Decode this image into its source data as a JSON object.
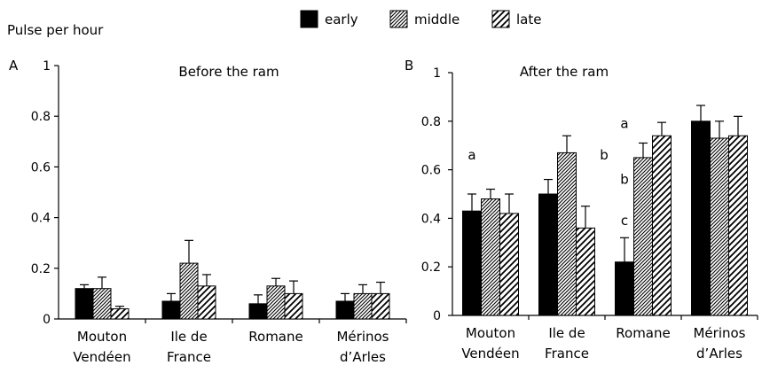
{
  "y_axis_label": "Pulse per hour",
  "legend": [
    {
      "label": "early",
      "pattern": "solid"
    },
    {
      "label": "middle",
      "pattern": "dense-hatch"
    },
    {
      "label": "late",
      "pattern": "sparse-hatch"
    }
  ],
  "colors": {
    "bar": "#000000",
    "background": "#ffffff"
  },
  "chart_data": [
    {
      "type": "bar",
      "panel": "A",
      "title": "Before the ram",
      "categories": [
        [
          "Mouton",
          "Vendéen"
        ],
        [
          "Ile de",
          "France"
        ],
        [
          "Romane",
          ""
        ],
        [
          "Mérinos",
          "d’Arles"
        ]
      ],
      "ylim": [
        0,
        1
      ],
      "yticks": [
        "0",
        "0.2",
        "0.4",
        "0.6",
        "0.8",
        "1"
      ],
      "series": [
        {
          "name": "early",
          "values": [
            0.12,
            0.07,
            0.06,
            0.07
          ],
          "errors": [
            0.015,
            0.03,
            0.035,
            0.03
          ]
        },
        {
          "name": "middle",
          "values": [
            0.12,
            0.22,
            0.13,
            0.1
          ],
          "errors": [
            0.045,
            0.09,
            0.03,
            0.035
          ]
        },
        {
          "name": "late",
          "values": [
            0.04,
            0.13,
            0.1,
            0.1
          ],
          "errors": [
            0.01,
            0.045,
            0.05,
            0.045
          ]
        }
      ],
      "annotations": []
    },
    {
      "type": "bar",
      "panel": "B",
      "title": "After the ram",
      "categories": [
        [
          "Mouton",
          "Vendéen"
        ],
        [
          "Ile de",
          "France"
        ],
        [
          "Romane",
          ""
        ],
        [
          "Mérinos",
          "d’Arles"
        ]
      ],
      "ylim": [
        0,
        1
      ],
      "yticks": [
        "0",
        "0.2",
        "0.4",
        "0.6",
        "0.8",
        "1"
      ],
      "series": [
        {
          "name": "early",
          "values": [
            0.43,
            0.5,
            0.22,
            0.8
          ],
          "errors": [
            0.07,
            0.06,
            0.1,
            0.065
          ]
        },
        {
          "name": "middle",
          "values": [
            0.48,
            0.67,
            0.65,
            0.73
          ],
          "errors": [
            0.04,
            0.07,
            0.06,
            0.07
          ]
        },
        {
          "name": "late",
          "values": [
            0.42,
            0.36,
            0.74,
            0.74
          ],
          "errors": [
            0.08,
            0.09,
            0.055,
            0.08
          ]
        }
      ],
      "annotations": [
        {
          "text": "a",
          "category": 0,
          "series": 0,
          "y": 0.66
        },
        {
          "text": "b",
          "category": 1,
          "series": 2,
          "y": 0.66
        },
        {
          "text": "a",
          "category": 2,
          "series": 0,
          "y": 0.79
        },
        {
          "text": "b",
          "category": 2,
          "series": 0,
          "y": 0.56
        },
        {
          "text": "c",
          "category": 2,
          "series": 0,
          "y": 0.39
        }
      ]
    }
  ]
}
